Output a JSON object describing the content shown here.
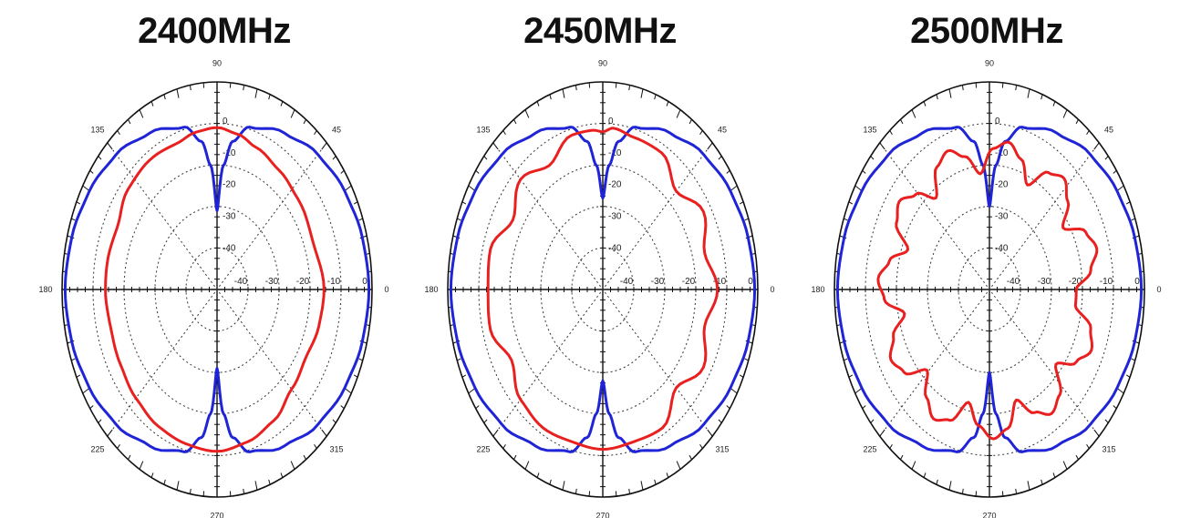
{
  "chart_data": [
    {
      "type": "polar-line",
      "title": "2400MHz",
      "angle_labels": [
        "0",
        "45",
        "90",
        "135",
        "180",
        "225",
        "270",
        "315"
      ],
      "radial_labels": [
        "0",
        "-10",
        "-20",
        "-30",
        "-40"
      ],
      "horizontal_labels": [
        "-40",
        "-30",
        "-20",
        "-10",
        "0"
      ],
      "radial_range_db": [
        -50,
        0
      ],
      "grid": true,
      "series": [
        {
          "color": "#1f24d6",
          "angles_deg": [
            0,
            15,
            30,
            45,
            60,
            75,
            82,
            86,
            90,
            94,
            98,
            105,
            120,
            135,
            150,
            165,
            180,
            195,
            210,
            225,
            240,
            255,
            262,
            266,
            270,
            274,
            278,
            285,
            300,
            315,
            330,
            345
          ],
          "values_db": [
            -1,
            -1.5,
            -2.5,
            -4,
            -6.5,
            -9.5,
            -14,
            -20,
            -31,
            -20,
            -14,
            -9.5,
            -6.5,
            -4,
            -2.5,
            -1.5,
            -1,
            -1.5,
            -2.5,
            -4,
            -6.5,
            -9.5,
            -14,
            -20,
            -31,
            -20,
            -14,
            -9.5,
            -6.5,
            -4,
            -2.5,
            -1.5
          ]
        },
        {
          "color": "#e8201f",
          "angles_deg": [
            0,
            20,
            40,
            55,
            70,
            80,
            90,
            100,
            110,
            125,
            140,
            155,
            170,
            180,
            195,
            210,
            225,
            240,
            255,
            270,
            285,
            300,
            315,
            330,
            345
          ],
          "values_db": [
            -15.5,
            -17,
            -16,
            -15,
            -13.5,
            -12,
            -11,
            -11.5,
            -12.5,
            -12,
            -12.5,
            -14.5,
            -14,
            -14,
            -14.5,
            -14,
            -13,
            -12,
            -11.5,
            -11,
            -12,
            -13.5,
            -16,
            -17,
            -16
          ]
        }
      ]
    },
    {
      "type": "polar-line",
      "title": "2450MHz",
      "angle_labels": [
        "0",
        "45",
        "90",
        "135",
        "180",
        "225",
        "270",
        "315"
      ],
      "radial_labels": [
        "0",
        "-10",
        "-20",
        "-30",
        "-40"
      ],
      "horizontal_labels": [
        "-40",
        "-30",
        "-20",
        "-10",
        "0"
      ],
      "radial_range_db": [
        -50,
        0
      ],
      "grid": true,
      "series": [
        {
          "color": "#1f24d6",
          "angles_deg": [
            0,
            15,
            30,
            45,
            60,
            75,
            82,
            86,
            90,
            94,
            98,
            105,
            120,
            135,
            150,
            165,
            180,
            195,
            210,
            225,
            240,
            255,
            262,
            266,
            270,
            274,
            278,
            285,
            300,
            315,
            330,
            345
          ],
          "values_db": [
            -1,
            -1.5,
            -2.5,
            -4,
            -6.5,
            -9.5,
            -14,
            -20,
            -28,
            -20,
            -14,
            -9.5,
            -6.5,
            -4,
            -2.5,
            -1.5,
            -1,
            -1.5,
            -2.5,
            -4,
            -6.5,
            -9.5,
            -14,
            -20,
            -28,
            -20,
            -14,
            -9.5,
            -6.5,
            -4,
            -2.5,
            -1.5
          ]
        },
        {
          "color": "#e8201f",
          "angles_deg": [
            0,
            15,
            30,
            45,
            60,
            75,
            85,
            90,
            95,
            105,
            120,
            135,
            150,
            165,
            180,
            195,
            210,
            225,
            240,
            255,
            270,
            285,
            300,
            315,
            330,
            345
          ],
          "values_db": [
            -13,
            -16,
            -12.5,
            -16.5,
            -12,
            -12,
            -11,
            -12,
            -11.5,
            -11.5,
            -15.5,
            -12.5,
            -16.5,
            -12.5,
            -13,
            -12.5,
            -16,
            -12.5,
            -11.5,
            -12,
            -11.5,
            -12,
            -11.5,
            -16.5,
            -12.5,
            -16
          ]
        }
      ]
    },
    {
      "type": "polar-line",
      "title": "2500MHz",
      "angle_labels": [
        "0",
        "45",
        "90",
        "135",
        "180",
        "225",
        "270",
        "315"
      ],
      "radial_labels": [
        "0",
        "-10",
        "-20",
        "-30",
        "-40"
      ],
      "horizontal_labels": [
        "-40",
        "-30",
        "-20",
        "-10",
        "0"
      ],
      "radial_range_db": [
        -50,
        0
      ],
      "grid": true,
      "series": [
        {
          "color": "#1f24d6",
          "angles_deg": [
            0,
            15,
            30,
            45,
            60,
            75,
            82,
            86,
            90,
            94,
            98,
            105,
            120,
            135,
            150,
            165,
            180,
            195,
            210,
            225,
            240,
            255,
            262,
            266,
            270,
            274,
            278,
            285,
            300,
            315,
            330,
            345
          ],
          "values_db": [
            -1,
            -1.5,
            -2.5,
            -4,
            -6.5,
            -9.5,
            -14,
            -20,
            -30,
            -20,
            -14,
            -9.5,
            -6.5,
            -4,
            -2.5,
            -1.5,
            -1,
            -1.5,
            -2.5,
            -4,
            -6.5,
            -9.5,
            -14,
            -20,
            -30,
            -20,
            -14,
            -9.5,
            -6.5,
            -4,
            -2.5,
            -1.5
          ]
        },
        {
          "color": "#e8201f",
          "angles_deg": [
            0,
            8,
            16,
            24,
            32,
            40,
            48,
            56,
            64,
            72,
            80,
            88,
            96,
            104,
            112,
            120,
            128,
            136,
            144,
            152,
            160,
            168,
            176,
            184,
            192,
            200,
            208,
            216,
            224,
            232,
            240,
            248,
            256,
            264,
            272,
            280,
            288,
            296,
            304,
            312,
            320,
            328,
            336,
            344,
            352
          ],
          "values_db": [
            -22,
            -17,
            -14,
            -16,
            -22,
            -17,
            -14,
            -16,
            -22,
            -17,
            -14,
            -16,
            -22,
            -17,
            -14,
            -16,
            -22,
            -17,
            -14,
            -16,
            -22,
            -17,
            -14,
            -16,
            -22,
            -17,
            -14,
            -16,
            -22,
            -17,
            -14,
            -16,
            -22,
            -17,
            -14,
            -16,
            -22,
            -17,
            -14,
            -16,
            -22,
            -17,
            -14,
            -16,
            -22
          ]
        }
      ]
    }
  ]
}
